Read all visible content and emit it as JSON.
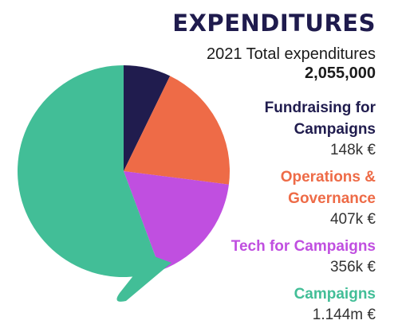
{
  "header": {
    "title": "EXPENDITURES",
    "subtitle": "2021 Total expenditures",
    "total": "2,055,000"
  },
  "colors": {
    "title": "#1f1b4d",
    "fundraising": "#201c4e",
    "operations": "#ee6b47",
    "tech": "#c04fe0",
    "campaigns": "#42be97"
  },
  "legend": [
    {
      "label_lines": [
        "Fundraising for",
        "Campaigns"
      ],
      "value": "148k €",
      "color": "#201c4e"
    },
    {
      "label_lines": [
        "Operations &",
        "Governance"
      ],
      "value": "407k €",
      "color": "#ee6b47"
    },
    {
      "label_lines": [
        "Tech for Campaigns"
      ],
      "value": "356k €",
      "color": "#c04fe0"
    },
    {
      "label_lines": [
        "Campaigns"
      ],
      "value": "1.144m €",
      "color": "#42be97"
    }
  ],
  "chart_data": {
    "type": "pie",
    "title": "EXPENDITURES",
    "subtitle": "2021 Total expenditures",
    "total": 2055000,
    "unit": "€",
    "slices": [
      {
        "label": "Fundraising for Campaigns",
        "value": 148000,
        "color": "#201c4e"
      },
      {
        "label": "Operations & Governance",
        "value": 407000,
        "color": "#ee6b47"
      },
      {
        "label": "Tech for Campaigns",
        "value": 356000,
        "color": "#c04fe0"
      },
      {
        "label": "Campaigns",
        "value": 1144000,
        "color": "#42be97"
      }
    ]
  }
}
